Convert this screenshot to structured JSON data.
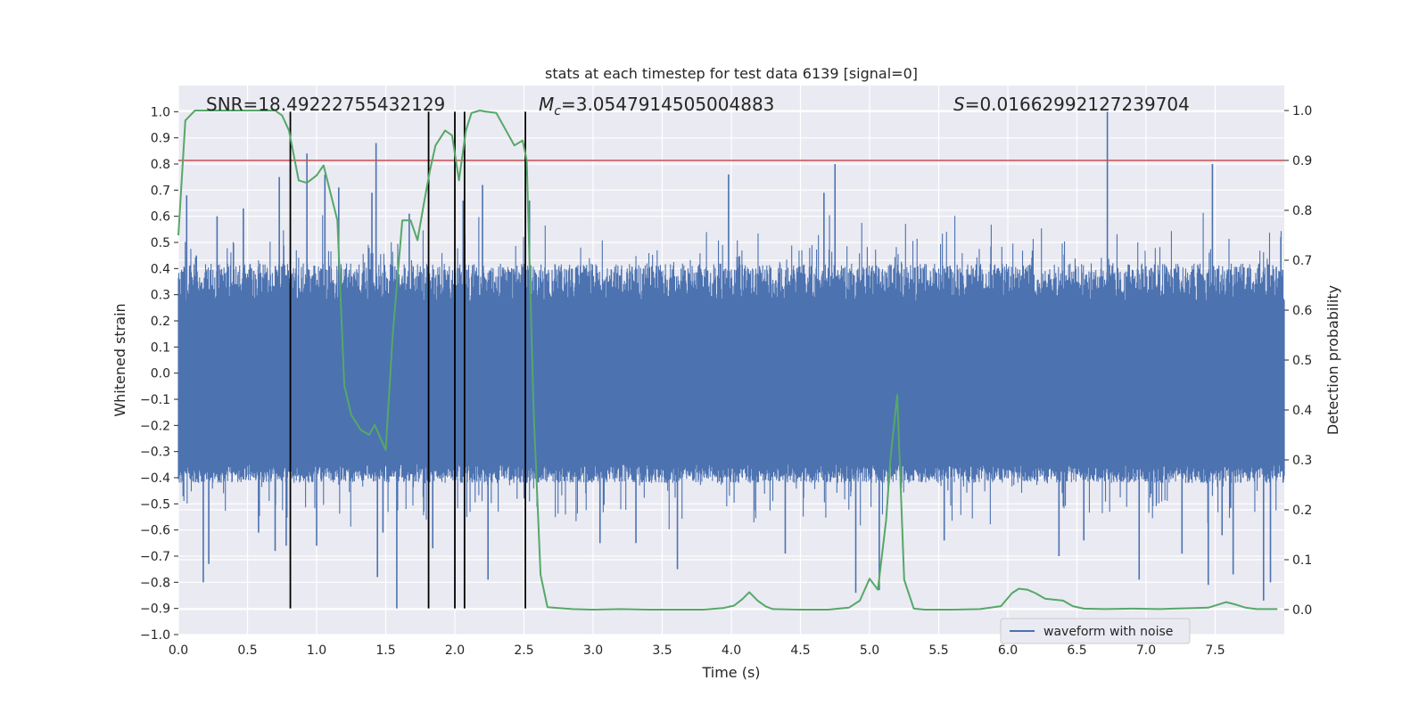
{
  "chart_data": {
    "type": "line",
    "title": "stats at each timestep for test data 6139 [signal=0]",
    "xlabel": "Time (s)",
    "ylabel_left": "Whitened strain",
    "ylabel_right": "Detection probability",
    "xlim": [
      0,
      8
    ],
    "ylim_left": [
      -1,
      1.1
    ],
    "ylim_right": [
      -0.05,
      1.05
    ],
    "x_ticks": [
      "0.0",
      "0.5",
      "1.0",
      "1.5",
      "2.0",
      "2.5",
      "3.0",
      "3.5",
      "4.0",
      "4.5",
      "5.0",
      "5.5",
      "6.0",
      "6.5",
      "7.0",
      "7.5"
    ],
    "y_left_ticks": [
      "−1.0",
      "−0.9",
      "−0.8",
      "−0.7",
      "−0.6",
      "−0.5",
      "−0.4",
      "−0.3",
      "−0.2",
      "−0.1",
      "0.0",
      "0.1",
      "0.2",
      "0.3",
      "0.4",
      "0.5",
      "0.6",
      "0.7",
      "0.8",
      "0.9",
      "1.0"
    ],
    "y_right_ticks": [
      "0.0",
      "0.1",
      "0.2",
      "0.3",
      "0.4",
      "0.5",
      "0.6",
      "0.7",
      "0.8",
      "0.9",
      "1.0"
    ],
    "grid": true,
    "legend": {
      "position": "lower-right",
      "entries": [
        {
          "label": "waveform with noise",
          "color": "#4c72b0"
        }
      ]
    },
    "annotations": {
      "snr_label": "SNR=18.49222755432129",
      "mc_symbol": "M",
      "mc_sub": "c",
      "mc_value": "=3.0547914505004883",
      "s_symbol": "S",
      "s_value": "=0.01662992127239704"
    },
    "threshold": {
      "axis": "right",
      "value": 0.9,
      "color": "#c44e52"
    },
    "vertical_lines": {
      "x": [
        0.81,
        1.81,
        2.0,
        2.07,
        2.51
      ],
      "ymin": -0.9,
      "ymax": 1.0,
      "color": "#000000"
    },
    "waveform": {
      "name": "waveform with noise",
      "axis": "left",
      "color": "#4c72b0",
      "core_band": [
        -0.33,
        0.24
      ],
      "typical_envelope": [
        -0.42,
        0.42
      ],
      "spikes": [
        {
          "x": 0.06,
          "y": 0.68
        },
        {
          "x": 0.13,
          "y": 0.45
        },
        {
          "x": 0.18,
          "y": -0.8
        },
        {
          "x": 0.22,
          "y": -0.73
        },
        {
          "x": 0.28,
          "y": 0.6
        },
        {
          "x": 0.47,
          "y": 0.63
        },
        {
          "x": 0.58,
          "y": -0.61
        },
        {
          "x": 0.7,
          "y": -0.68
        },
        {
          "x": 0.73,
          "y": 0.75
        },
        {
          "x": 0.78,
          "y": -0.66
        },
        {
          "x": 0.93,
          "y": 0.84
        },
        {
          "x": 1.0,
          "y": -0.66
        },
        {
          "x": 1.06,
          "y": 0.76
        },
        {
          "x": 1.16,
          "y": 0.71
        },
        {
          "x": 1.4,
          "y": 0.69
        },
        {
          "x": 1.43,
          "y": 0.88
        },
        {
          "x": 1.44,
          "y": -0.78
        },
        {
          "x": 1.48,
          "y": -0.61
        },
        {
          "x": 1.58,
          "y": -0.9
        },
        {
          "x": 1.67,
          "y": 0.61
        },
        {
          "x": 1.84,
          "y": -0.67
        },
        {
          "x": 2.06,
          "y": 0.66
        },
        {
          "x": 2.2,
          "y": 0.72
        },
        {
          "x": 2.24,
          "y": -0.79
        },
        {
          "x": 2.54,
          "y": 0.66
        },
        {
          "x": 3.05,
          "y": -0.65
        },
        {
          "x": 3.31,
          "y": -0.65
        },
        {
          "x": 3.61,
          "y": -0.75
        },
        {
          "x": 3.98,
          "y": 0.76
        },
        {
          "x": 4.39,
          "y": -0.69
        },
        {
          "x": 4.67,
          "y": 0.69
        },
        {
          "x": 4.75,
          "y": 0.8
        },
        {
          "x": 4.9,
          "y": -0.84
        },
        {
          "x": 5.07,
          "y": -0.83
        },
        {
          "x": 5.54,
          "y": -0.64
        },
        {
          "x": 6.37,
          "y": -0.7
        },
        {
          "x": 6.55,
          "y": -0.64
        },
        {
          "x": 6.72,
          "y": 1.0
        },
        {
          "x": 6.95,
          "y": -0.79
        },
        {
          "x": 7.26,
          "y": -0.69
        },
        {
          "x": 7.45,
          "y": -0.81
        },
        {
          "x": 7.48,
          "y": 0.8
        },
        {
          "x": 7.55,
          "y": -0.62
        },
        {
          "x": 7.63,
          "y": -0.77
        },
        {
          "x": 7.85,
          "y": -0.87
        },
        {
          "x": 7.9,
          "y": -0.8
        }
      ]
    },
    "detection_probability": {
      "axis": "right",
      "color": "#55a868",
      "x": [
        0.0,
        0.05,
        0.12,
        0.2,
        0.3,
        0.4,
        0.5,
        0.6,
        0.7,
        0.75,
        0.8,
        0.87,
        0.93,
        1.0,
        1.05,
        1.15,
        1.2,
        1.25,
        1.32,
        1.38,
        1.42,
        1.5,
        1.55,
        1.62,
        1.68,
        1.73,
        1.78,
        1.82,
        1.86,
        1.93,
        1.98,
        2.03,
        2.08,
        2.12,
        2.18,
        2.22,
        2.3,
        2.43,
        2.49,
        2.52,
        2.57,
        2.62,
        2.67,
        2.75,
        2.85,
        3.0,
        3.2,
        3.4,
        3.6,
        3.8,
        3.94,
        4.02,
        4.08,
        4.13,
        4.19,
        4.25,
        4.3,
        4.5,
        4.7,
        4.85,
        4.93,
        5.0,
        5.06,
        5.12,
        5.15,
        5.2,
        5.25,
        5.32,
        5.4,
        5.6,
        5.8,
        5.95,
        6.03,
        6.08,
        6.14,
        6.2,
        6.27,
        6.33,
        6.4,
        6.47,
        6.55,
        6.7,
        6.9,
        7.1,
        7.2,
        7.35,
        7.45,
        7.52,
        7.58,
        7.65,
        7.72,
        7.8,
        7.95
      ],
      "y": [
        0.75,
        0.98,
        1.0,
        1.0,
        1.0,
        1.0,
        1.0,
        1.0,
        1.0,
        0.99,
        0.96,
        0.86,
        0.855,
        0.87,
        0.89,
        0.78,
        0.45,
        0.39,
        0.36,
        0.35,
        0.37,
        0.32,
        0.55,
        0.78,
        0.78,
        0.74,
        0.82,
        0.88,
        0.93,
        0.96,
        0.95,
        0.86,
        0.96,
        0.995,
        1.0,
        0.998,
        0.995,
        0.93,
        0.94,
        0.9,
        0.4,
        0.07,
        0.005,
        0.003,
        0.001,
        0.0,
        0.001,
        0.0,
        0.0,
        0.0,
        0.003,
        0.008,
        0.021,
        0.035,
        0.018,
        0.006,
        0.001,
        0.0,
        0.0,
        0.004,
        0.018,
        0.062,
        0.04,
        0.18,
        0.3,
        0.43,
        0.06,
        0.002,
        0.0,
        0.0,
        0.001,
        0.007,
        0.033,
        0.042,
        0.04,
        0.033,
        0.022,
        0.02,
        0.018,
        0.007,
        0.002,
        0.001,
        0.002,
        0.001,
        0.002,
        0.003,
        0.004,
        0.01,
        0.015,
        0.01,
        0.004,
        0.001,
        0.001
      ]
    }
  }
}
